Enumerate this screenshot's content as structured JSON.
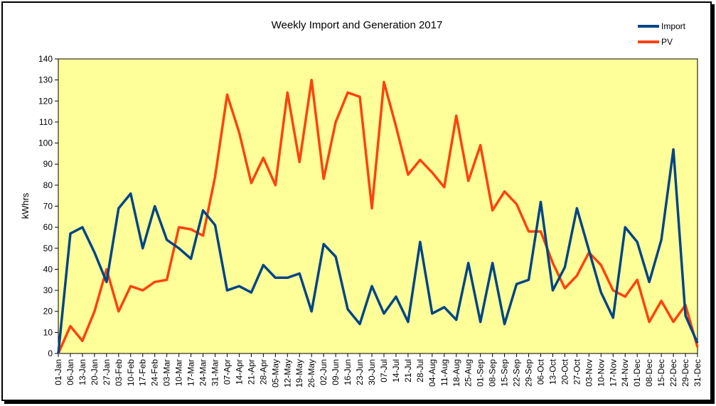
{
  "chart_data": {
    "type": "line",
    "title": "Weekly Import and Generation 2017",
    "xlabel": "",
    "ylabel": "kWhrs",
    "ylim": [
      0,
      140
    ],
    "ytick_step": 10,
    "grid": false,
    "legend_position": "top-right",
    "plot_background": "#ffff99",
    "categories": [
      "01-Jan",
      "06-Jan",
      "13-Jan",
      "20-Jan",
      "27-Jan",
      "03-Feb",
      "10-Feb",
      "17-Feb",
      "24-Feb",
      "03-Mar",
      "10-Mar",
      "17-Mar",
      "24-Mar",
      "31-Mar",
      "07-Apr",
      "14-Apr",
      "21-Apr",
      "28-Apr",
      "05-May",
      "12-May",
      "19-May",
      "26-May",
      "02-Jun",
      "09-Jun",
      "16-Jun",
      "23-Jun",
      "30-Jun",
      "07-Jul",
      "14-Jul",
      "21-Jul",
      "28-Jul",
      "04-Aug",
      "11-Aug",
      "18-Aug",
      "25-Aug",
      "01-Sep",
      "08-Sep",
      "15-Sep",
      "22-Sep",
      "29-Sep",
      "06-Oct",
      "13-Oct",
      "20-Oct",
      "27-Oct",
      "03-Nov",
      "10-Nov",
      "17-Nov",
      "24-Nov",
      "01-Dec",
      "08-Dec",
      "15-Dec",
      "22-Dec",
      "29-Dec",
      "31-Dec"
    ],
    "series": [
      {
        "name": "Import",
        "color": "#004586",
        "values": [
          0,
          57,
          60,
          48,
          34,
          69,
          76,
          50,
          70,
          54,
          50,
          45,
          68,
          61,
          30,
          32,
          29,
          42,
          36,
          36,
          38,
          20,
          52,
          46,
          21,
          14,
          32,
          19,
          27,
          15,
          53,
          19,
          22,
          16,
          43,
          15,
          43,
          14,
          33,
          35,
          72,
          30,
          41,
          69,
          49,
          29,
          17,
          60,
          53,
          34,
          54,
          97,
          18,
          5
        ]
      },
      {
        "name": "PV",
        "color": "#ff420e",
        "values": [
          0,
          13,
          6,
          20,
          40,
          20,
          32,
          30,
          34,
          35,
          60,
          59,
          56,
          84,
          123,
          105,
          81,
          93,
          80,
          124,
          91,
          130,
          83,
          110,
          124,
          122,
          69,
          129,
          108,
          85,
          92,
          86,
          79,
          113,
          82,
          99,
          68,
          77,
          71,
          58,
          58,
          43,
          31,
          37,
          48,
          42,
          30,
          27,
          35,
          15,
          25,
          15,
          23,
          3
        ]
      }
    ]
  }
}
